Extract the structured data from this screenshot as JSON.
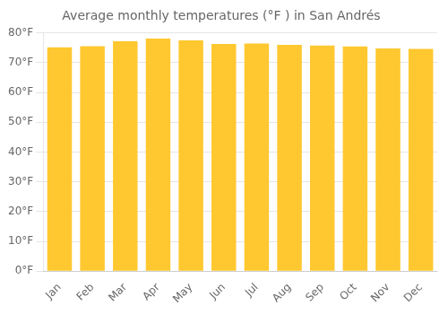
{
  "chart_data": {
    "type": "bar",
    "title": "Average monthly temperatures (°F ) in San Andrés",
    "categories": [
      "Jan",
      "Feb",
      "Mar",
      "Apr",
      "May",
      "Jun",
      "Jul",
      "Aug",
      "Sep",
      "Oct",
      "Nov",
      "Dec"
    ],
    "values": [
      75.2,
      75.6,
      77.2,
      78.1,
      77.5,
      76.3,
      76.5,
      76.0,
      75.8,
      75.5,
      74.8,
      74.7
    ],
    "color": "#FFC830",
    "ylim": [
      0,
      80
    ],
    "yticks": [
      {
        "value": 0,
        "label": "0°F"
      },
      {
        "value": 10,
        "label": "10°F"
      },
      {
        "value": 20,
        "label": "20°F"
      },
      {
        "value": 30,
        "label": "30°F"
      },
      {
        "value": 40,
        "label": "40°F"
      },
      {
        "value": 50,
        "label": "50°F"
      },
      {
        "value": 60,
        "label": "60°F"
      },
      {
        "value": 70,
        "label": "70°F"
      },
      {
        "value": 80,
        "label": "80°F"
      }
    ],
    "grid": true
  }
}
